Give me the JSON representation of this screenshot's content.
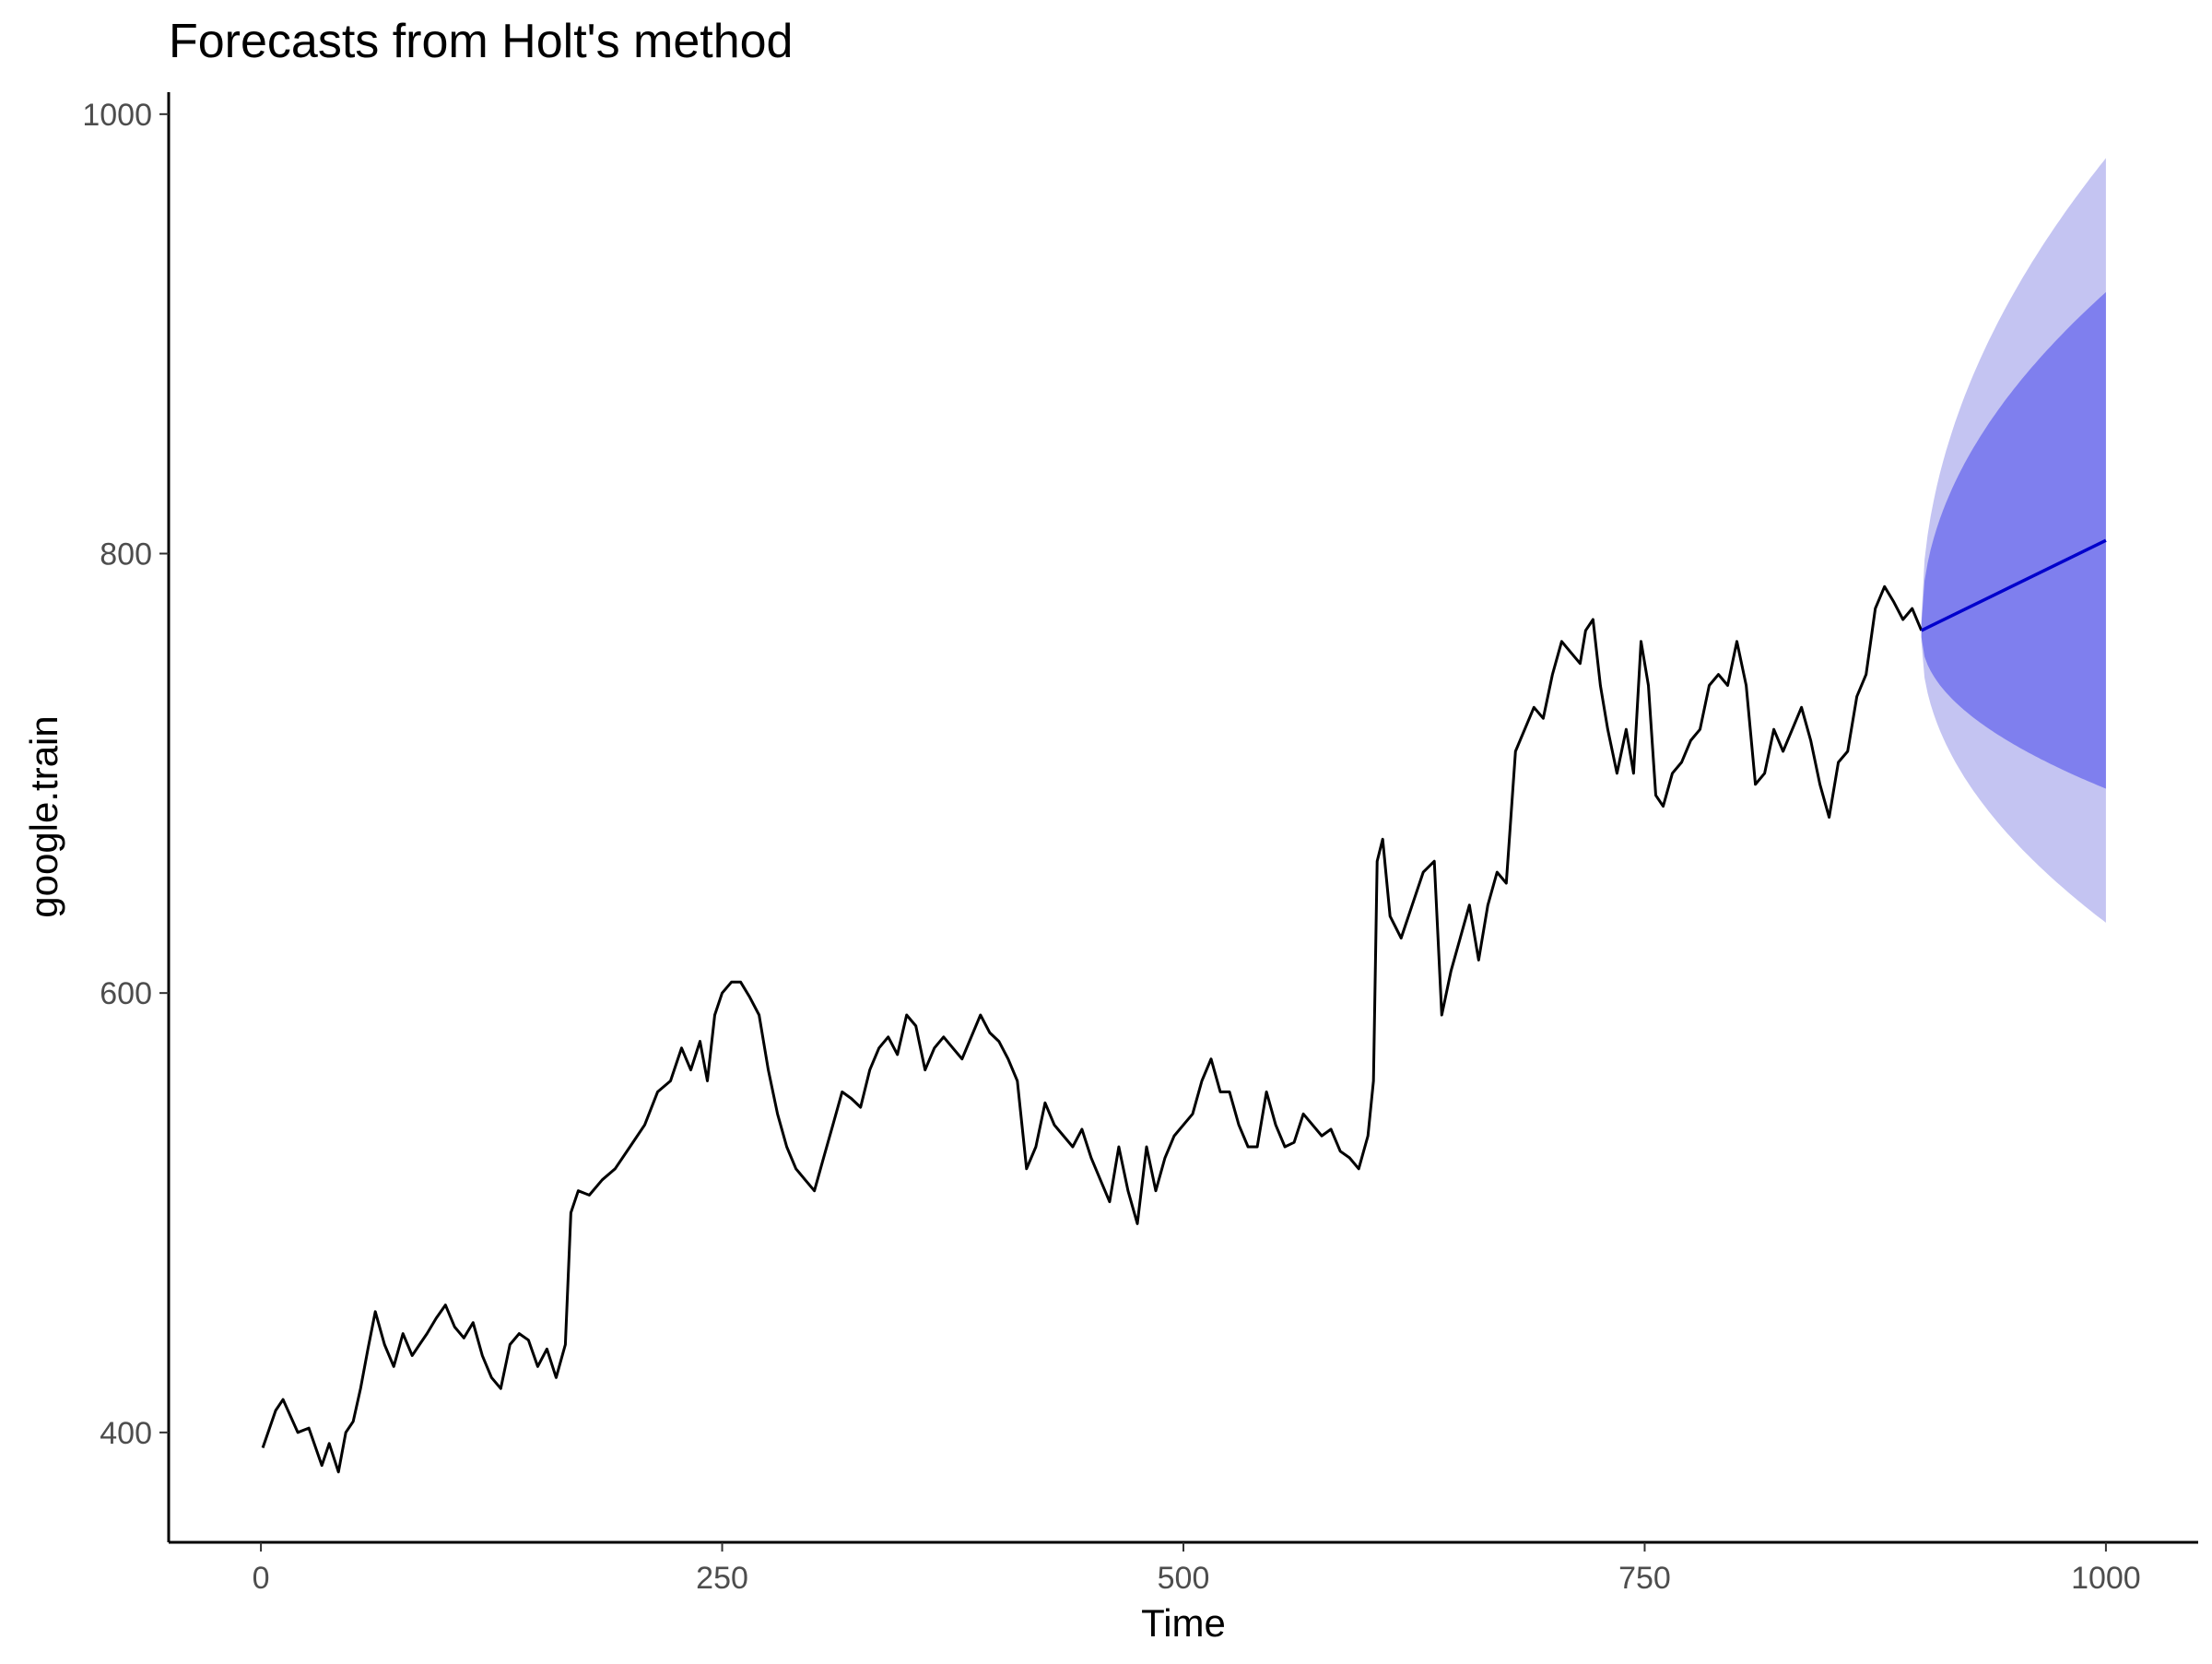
{
  "chart_data": {
    "type": "line",
    "title": "Forecasts from Holt's method",
    "xlabel": "Time",
    "ylabel": "google.train",
    "xlim": [
      -50,
      1050
    ],
    "ylim": [
      350,
      1010
    ],
    "x_ticks": [
      0,
      250,
      500,
      750,
      1000
    ],
    "x_tick_labels": [
      "0",
      "250",
      "500",
      "750",
      "1000"
    ],
    "y_ticks": [
      400,
      600,
      800,
      1000
    ],
    "y_tick_labels": [
      "400",
      "600",
      "800",
      "1000"
    ],
    "grid": false,
    "legend": "none",
    "series": [
      {
        "x": [
          1,
          8,
          12,
          20,
          26,
          33,
          37,
          42,
          46,
          50,
          54,
          58,
          62,
          67,
          72,
          77,
          82,
          86,
          90,
          95,
          100,
          105,
          110,
          115,
          120,
          125,
          130,
          135,
          140,
          145,
          150,
          155,
          160,
          165,
          168,
          172,
          178,
          185,
          192,
          200,
          208,
          215,
          222,
          228,
          233,
          238,
          242,
          246,
          250,
          255,
          260,
          265,
          270,
          275,
          280,
          285,
          290,
          295,
          300,
          305,
          310,
          315,
          320,
          325,
          330,
          335,
          340,
          345,
          350,
          355,
          360,
          365,
          370,
          375,
          380,
          385,
          390,
          395,
          400,
          405,
          410,
          415,
          420,
          425,
          430,
          435,
          440,
          445,
          450,
          455,
          460,
          465,
          470,
          475,
          480,
          485,
          490,
          495,
          500,
          505,
          510,
          515,
          520,
          525,
          530,
          535,
          540,
          545,
          550,
          555,
          560,
          565,
          570,
          575,
          580,
          585,
          590,
          595,
          600,
          603,
          605,
          608,
          612,
          618,
          624,
          630,
          636,
          640,
          645,
          650,
          655,
          660,
          665,
          670,
          675,
          680,
          685,
          690,
          695,
          700,
          705,
          710,
          715,
          718,
          722,
          726,
          730,
          735,
          740,
          744,
          748,
          752,
          756,
          760,
          765,
          770,
          775,
          780,
          785,
          790,
          795,
          800,
          805,
          810,
          815,
          820,
          825,
          830,
          835,
          840,
          845,
          850,
          855,
          860,
          865,
          870,
          875,
          880,
          885,
          890,
          895,
          900
        ],
        "y": [
          393,
          410,
          415,
          400,
          402,
          385,
          395,
          382,
          400,
          405,
          420,
          438,
          455,
          440,
          430,
          445,
          435,
          440,
          445,
          452,
          458,
          448,
          443,
          450,
          435,
          425,
          420,
          440,
          445,
          442,
          430,
          438,
          425,
          440,
          500,
          510,
          508,
          515,
          520,
          530,
          540,
          555,
          560,
          575,
          565,
          578,
          560,
          590,
          600,
          605,
          605,
          598,
          590,
          565,
          545,
          530,
          520,
          515,
          510,
          525,
          540,
          555,
          552,
          548,
          565,
          575,
          580,
          572,
          590,
          585,
          565,
          575,
          580,
          575,
          570,
          580,
          590,
          582,
          578,
          570,
          560,
          520,
          530,
          550,
          540,
          535,
          530,
          538,
          525,
          515,
          505,
          530,
          510,
          495,
          530,
          510,
          525,
          535,
          540,
          545,
          560,
          570,
          555,
          555,
          540,
          530,
          530,
          555,
          540,
          530,
          532,
          545,
          540,
          535,
          538,
          528,
          525,
          520,
          535,
          560,
          660,
          670,
          635,
          625,
          640,
          655,
          660,
          590,
          610,
          625,
          640,
          615,
          640,
          655,
          650,
          710,
          720,
          730,
          725,
          745,
          760,
          755,
          750,
          765,
          770,
          740,
          720,
          700,
          720,
          700,
          760,
          740,
          690,
          685,
          700,
          705,
          715,
          720,
          740,
          745,
          740,
          760,
          740,
          695,
          700,
          720,
          710,
          720,
          730,
          715,
          695,
          680,
          705,
          710,
          735,
          745,
          775,
          785,
          778,
          770,
          775,
          765
        ]
      },
      {
        "name": "forecast",
        "x": [
          900,
          1000
        ],
        "y": [
          765,
          806
        ]
      }
    ],
    "intervals": [
      {
        "level": 95,
        "x": [
          900,
          1000
        ],
        "lower": [
          760,
          632
        ],
        "upper": [
          770,
          980
        ]
      },
      {
        "level": 80,
        "x": [
          900,
          1000
        ],
        "lower": [
          762,
          693
        ],
        "upper": [
          768,
          919
        ]
      }
    ],
    "colors": {
      "history_line": "#000000",
      "forecast_line": "#0000cc",
      "band_95": "#c4c4f2",
      "band_80": "#7f7fee"
    }
  }
}
